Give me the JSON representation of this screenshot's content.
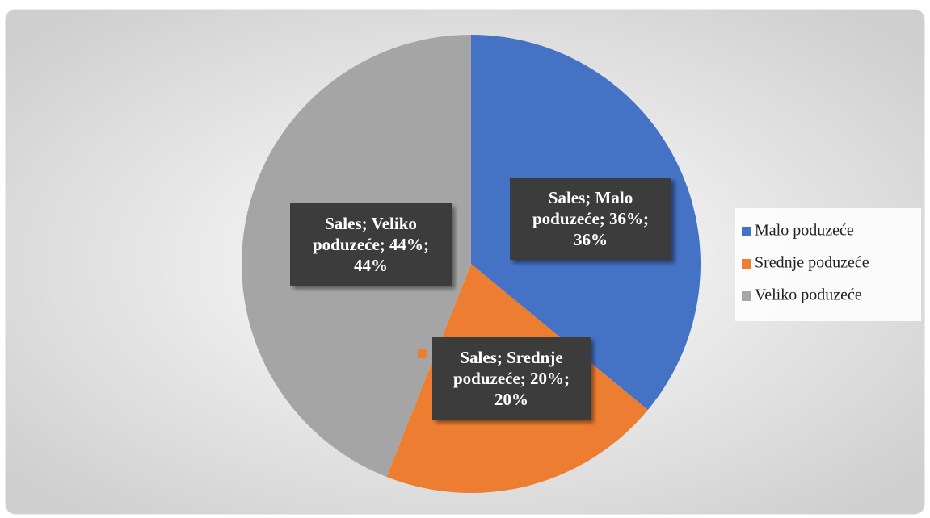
{
  "chart_data": {
    "type": "pie",
    "categories": [
      "Malo poduzeće",
      "Srednje poduzeće",
      "Veliko poduzeće"
    ],
    "values": [
      36,
      20,
      44
    ],
    "value_labels": [
      "Sales; Malo poduzeće; 36%; 36%",
      "Sales; Srednje poduzeće; 20%; 20%",
      "Sales; Veliko poduzeće; 44%; 44%"
    ],
    "colors": [
      "#4472c4",
      "#ed7d31",
      "#a5a5a5"
    ],
    "legend": "right"
  }
}
